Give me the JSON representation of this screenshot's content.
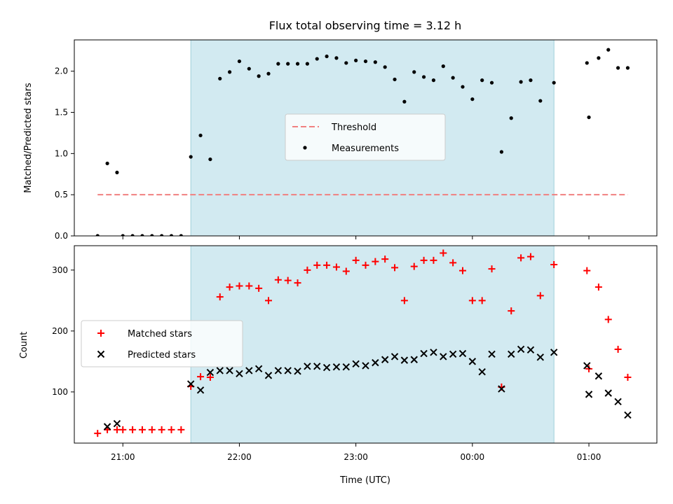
{
  "chart_data": {
    "type": "scatter",
    "title": "Flux total observing time = 3.12 h",
    "xlabel": "Time (UTC)",
    "x_tick_labels": [
      "21:00",
      "22:00",
      "23:00",
      "00:00",
      "01:00"
    ],
    "x_ticks": [
      "2000-01-01T21:00",
      "2000-01-01T22:00",
      "2000-01-01T23:00",
      "2000-01-02T00:00",
      "2000-01-02T01:00"
    ],
    "xlim": [
      "2000-01-01T20:35",
      "2000-01-02T01:35"
    ],
    "shaded_interval": [
      "2000-01-01T21:35",
      "2000-01-02T00:42"
    ],
    "shade_color": "#add8e6",
    "panels": [
      {
        "ylabel": "Matched/Predicted stars",
        "ylim": [
          0,
          2.38
        ],
        "y_ticks": [
          0.0,
          0.5,
          1.0,
          1.5,
          2.0
        ],
        "y_tick_labels": [
          "0.0",
          "0.5",
          "1.0",
          "1.5",
          "2.0"
        ],
        "legend_position": "center",
        "legend": [
          "Threshold",
          "Measurements"
        ],
        "threshold": {
          "name": "Threshold",
          "value": 0.5,
          "x_start": "2000-01-01T20:47",
          "x_end": "2000-01-02T01:20",
          "color": "#f08080"
        },
        "series": [
          {
            "name": "Measurements",
            "marker": "dot",
            "color": "#000000",
            "x": [
              "2000-01-01T20:47",
              "2000-01-01T20:52",
              "2000-01-01T20:57",
              "2000-01-01T21:00",
              "2000-01-01T21:05",
              "2000-01-01T21:10",
              "2000-01-01T21:15",
              "2000-01-01T21:20",
              "2000-01-01T21:25",
              "2000-01-01T21:30",
              "2000-01-01T21:35",
              "2000-01-01T21:40",
              "2000-01-01T21:45",
              "2000-01-01T21:50",
              "2000-01-01T21:55",
              "2000-01-01T22:00",
              "2000-01-01T22:05",
              "2000-01-01T22:10",
              "2000-01-01T22:15",
              "2000-01-01T22:20",
              "2000-01-01T22:25",
              "2000-01-01T22:30",
              "2000-01-01T22:35",
              "2000-01-01T22:40",
              "2000-01-01T22:45",
              "2000-01-01T22:50",
              "2000-01-01T22:55",
              "2000-01-01T23:00",
              "2000-01-01T23:05",
              "2000-01-01T23:10",
              "2000-01-01T23:15",
              "2000-01-01T23:20",
              "2000-01-01T23:25",
              "2000-01-01T23:30",
              "2000-01-01T23:35",
              "2000-01-01T23:40",
              "2000-01-01T23:45",
              "2000-01-01T23:50",
              "2000-01-01T23:55",
              "2000-01-02T00:00",
              "2000-01-02T00:05",
              "2000-01-02T00:10",
              "2000-01-02T00:15",
              "2000-01-02T00:20",
              "2000-01-02T00:25",
              "2000-01-02T00:30",
              "2000-01-02T00:35",
              "2000-01-02T00:42",
              "2000-01-02T00:59",
              "2000-01-02T01:00",
              "2000-01-02T01:05",
              "2000-01-02T01:10",
              "2000-01-02T01:15",
              "2000-01-02T01:20"
            ],
            "y": [
              0.0,
              0.88,
              0.77,
              0.0,
              0.0,
              0.0,
              0.0,
              0.0,
              0.0,
              0.0,
              0.96,
              1.22,
              0.93,
              1.91,
              1.99,
              2.12,
              2.03,
              1.94,
              1.97,
              2.09,
              2.09,
              2.09,
              2.09,
              2.15,
              2.18,
              2.16,
              2.1,
              2.13,
              2.12,
              2.11,
              2.05,
              1.9,
              1.63,
              1.99,
              1.93,
              1.89,
              2.06,
              1.92,
              1.81,
              1.66,
              1.89,
              1.86,
              1.02,
              1.43,
              1.87,
              1.89,
              1.64,
              1.86,
              2.1,
              1.44,
              2.16,
              2.26,
              2.04,
              2.04
            ]
          }
        ]
      },
      {
        "ylabel": "Count",
        "ylim": [
          16,
          340
        ],
        "y_ticks": [
          100,
          200,
          300
        ],
        "y_tick_labels": [
          "100",
          "200",
          "300"
        ],
        "legend_position": "center-left",
        "legend": [
          "Matched stars",
          "Predicted stars"
        ],
        "series": [
          {
            "name": "Matched stars",
            "marker": "plus",
            "color": "#ff0000",
            "x": [
              "2000-01-01T20:47",
              "2000-01-01T20:52",
              "2000-01-01T20:57",
              "2000-01-01T21:00",
              "2000-01-01T21:05",
              "2000-01-01T21:10",
              "2000-01-01T21:15",
              "2000-01-01T21:20",
              "2000-01-01T21:25",
              "2000-01-01T21:30",
              "2000-01-01T21:35",
              "2000-01-01T21:40",
              "2000-01-01T21:45",
              "2000-01-01T21:50",
              "2000-01-01T21:55",
              "2000-01-01T22:00",
              "2000-01-01T22:05",
              "2000-01-01T22:10",
              "2000-01-01T22:15",
              "2000-01-01T22:20",
              "2000-01-01T22:25",
              "2000-01-01T22:30",
              "2000-01-01T22:35",
              "2000-01-01T22:40",
              "2000-01-01T22:45",
              "2000-01-01T22:50",
              "2000-01-01T22:55",
              "2000-01-01T23:00",
              "2000-01-01T23:05",
              "2000-01-01T23:10",
              "2000-01-01T23:15",
              "2000-01-01T23:20",
              "2000-01-01T23:25",
              "2000-01-01T23:30",
              "2000-01-01T23:35",
              "2000-01-01T23:40",
              "2000-01-01T23:45",
              "2000-01-01T23:50",
              "2000-01-01T23:55",
              "2000-01-02T00:00",
              "2000-01-02T00:05",
              "2000-01-02T00:10",
              "2000-01-02T00:15",
              "2000-01-02T00:20",
              "2000-01-02T00:25",
              "2000-01-02T00:30",
              "2000-01-02T00:35",
              "2000-01-02T00:42",
              "2000-01-02T00:59",
              "2000-01-02T01:00",
              "2000-01-02T01:05",
              "2000-01-02T01:10",
              "2000-01-02T01:15",
              "2000-01-02T01:20"
            ],
            "y": [
              32,
              38,
              38,
              38,
              38,
              38,
              38,
              38,
              38,
              38,
              109,
              125,
              124,
              256,
              272,
              274,
              274,
              270,
              250,
              284,
              283,
              279,
              300,
              308,
              308,
              305,
              298,
              316,
              308,
              314,
              318,
              304,
              250,
              306,
              316,
              316,
              328,
              312,
              299,
              250,
              250,
              302,
              108,
              233,
              320,
              322,
              258,
              309,
              299,
              138,
              272,
              219,
              170,
              124
            ]
          },
          {
            "name": "Predicted stars",
            "marker": "x",
            "color": "#000000",
            "x": [
              "2000-01-01T20:52",
              "2000-01-01T20:57",
              "2000-01-01T21:35",
              "2000-01-01T21:40",
              "2000-01-01T21:45",
              "2000-01-01T21:50",
              "2000-01-01T21:55",
              "2000-01-01T22:00",
              "2000-01-01T22:05",
              "2000-01-01T22:10",
              "2000-01-01T22:15",
              "2000-01-01T22:20",
              "2000-01-01T22:25",
              "2000-01-01T22:30",
              "2000-01-01T22:35",
              "2000-01-01T22:40",
              "2000-01-01T22:45",
              "2000-01-01T22:50",
              "2000-01-01T22:55",
              "2000-01-01T23:00",
              "2000-01-01T23:05",
              "2000-01-01T23:10",
              "2000-01-01T23:15",
              "2000-01-01T23:20",
              "2000-01-01T23:25",
              "2000-01-01T23:30",
              "2000-01-01T23:35",
              "2000-01-01T23:40",
              "2000-01-01T23:45",
              "2000-01-01T23:50",
              "2000-01-01T23:55",
              "2000-01-02T00:00",
              "2000-01-02T00:05",
              "2000-01-02T00:10",
              "2000-01-02T00:15",
              "2000-01-02T00:20",
              "2000-01-02T00:25",
              "2000-01-02T00:30",
              "2000-01-02T00:35",
              "2000-01-02T00:42",
              "2000-01-02T00:59",
              "2000-01-02T01:00",
              "2000-01-02T01:05",
              "2000-01-02T01:10",
              "2000-01-02T01:15",
              "2000-01-02T01:20"
            ],
            "y": [
              43,
              48,
              113,
              103,
              132,
              135,
              135,
              130,
              135,
              138,
              127,
              135,
              135,
              134,
              142,
              142,
              140,
              141,
              141,
              146,
              143,
              148,
              153,
              158,
              152,
              153,
              163,
              165,
              158,
              162,
              163,
              150,
              133,
              162,
              105,
              162,
              170,
              169,
              157,
              165,
              143,
              96,
              126,
              98,
              84,
              62
            ]
          }
        ]
      }
    ]
  }
}
